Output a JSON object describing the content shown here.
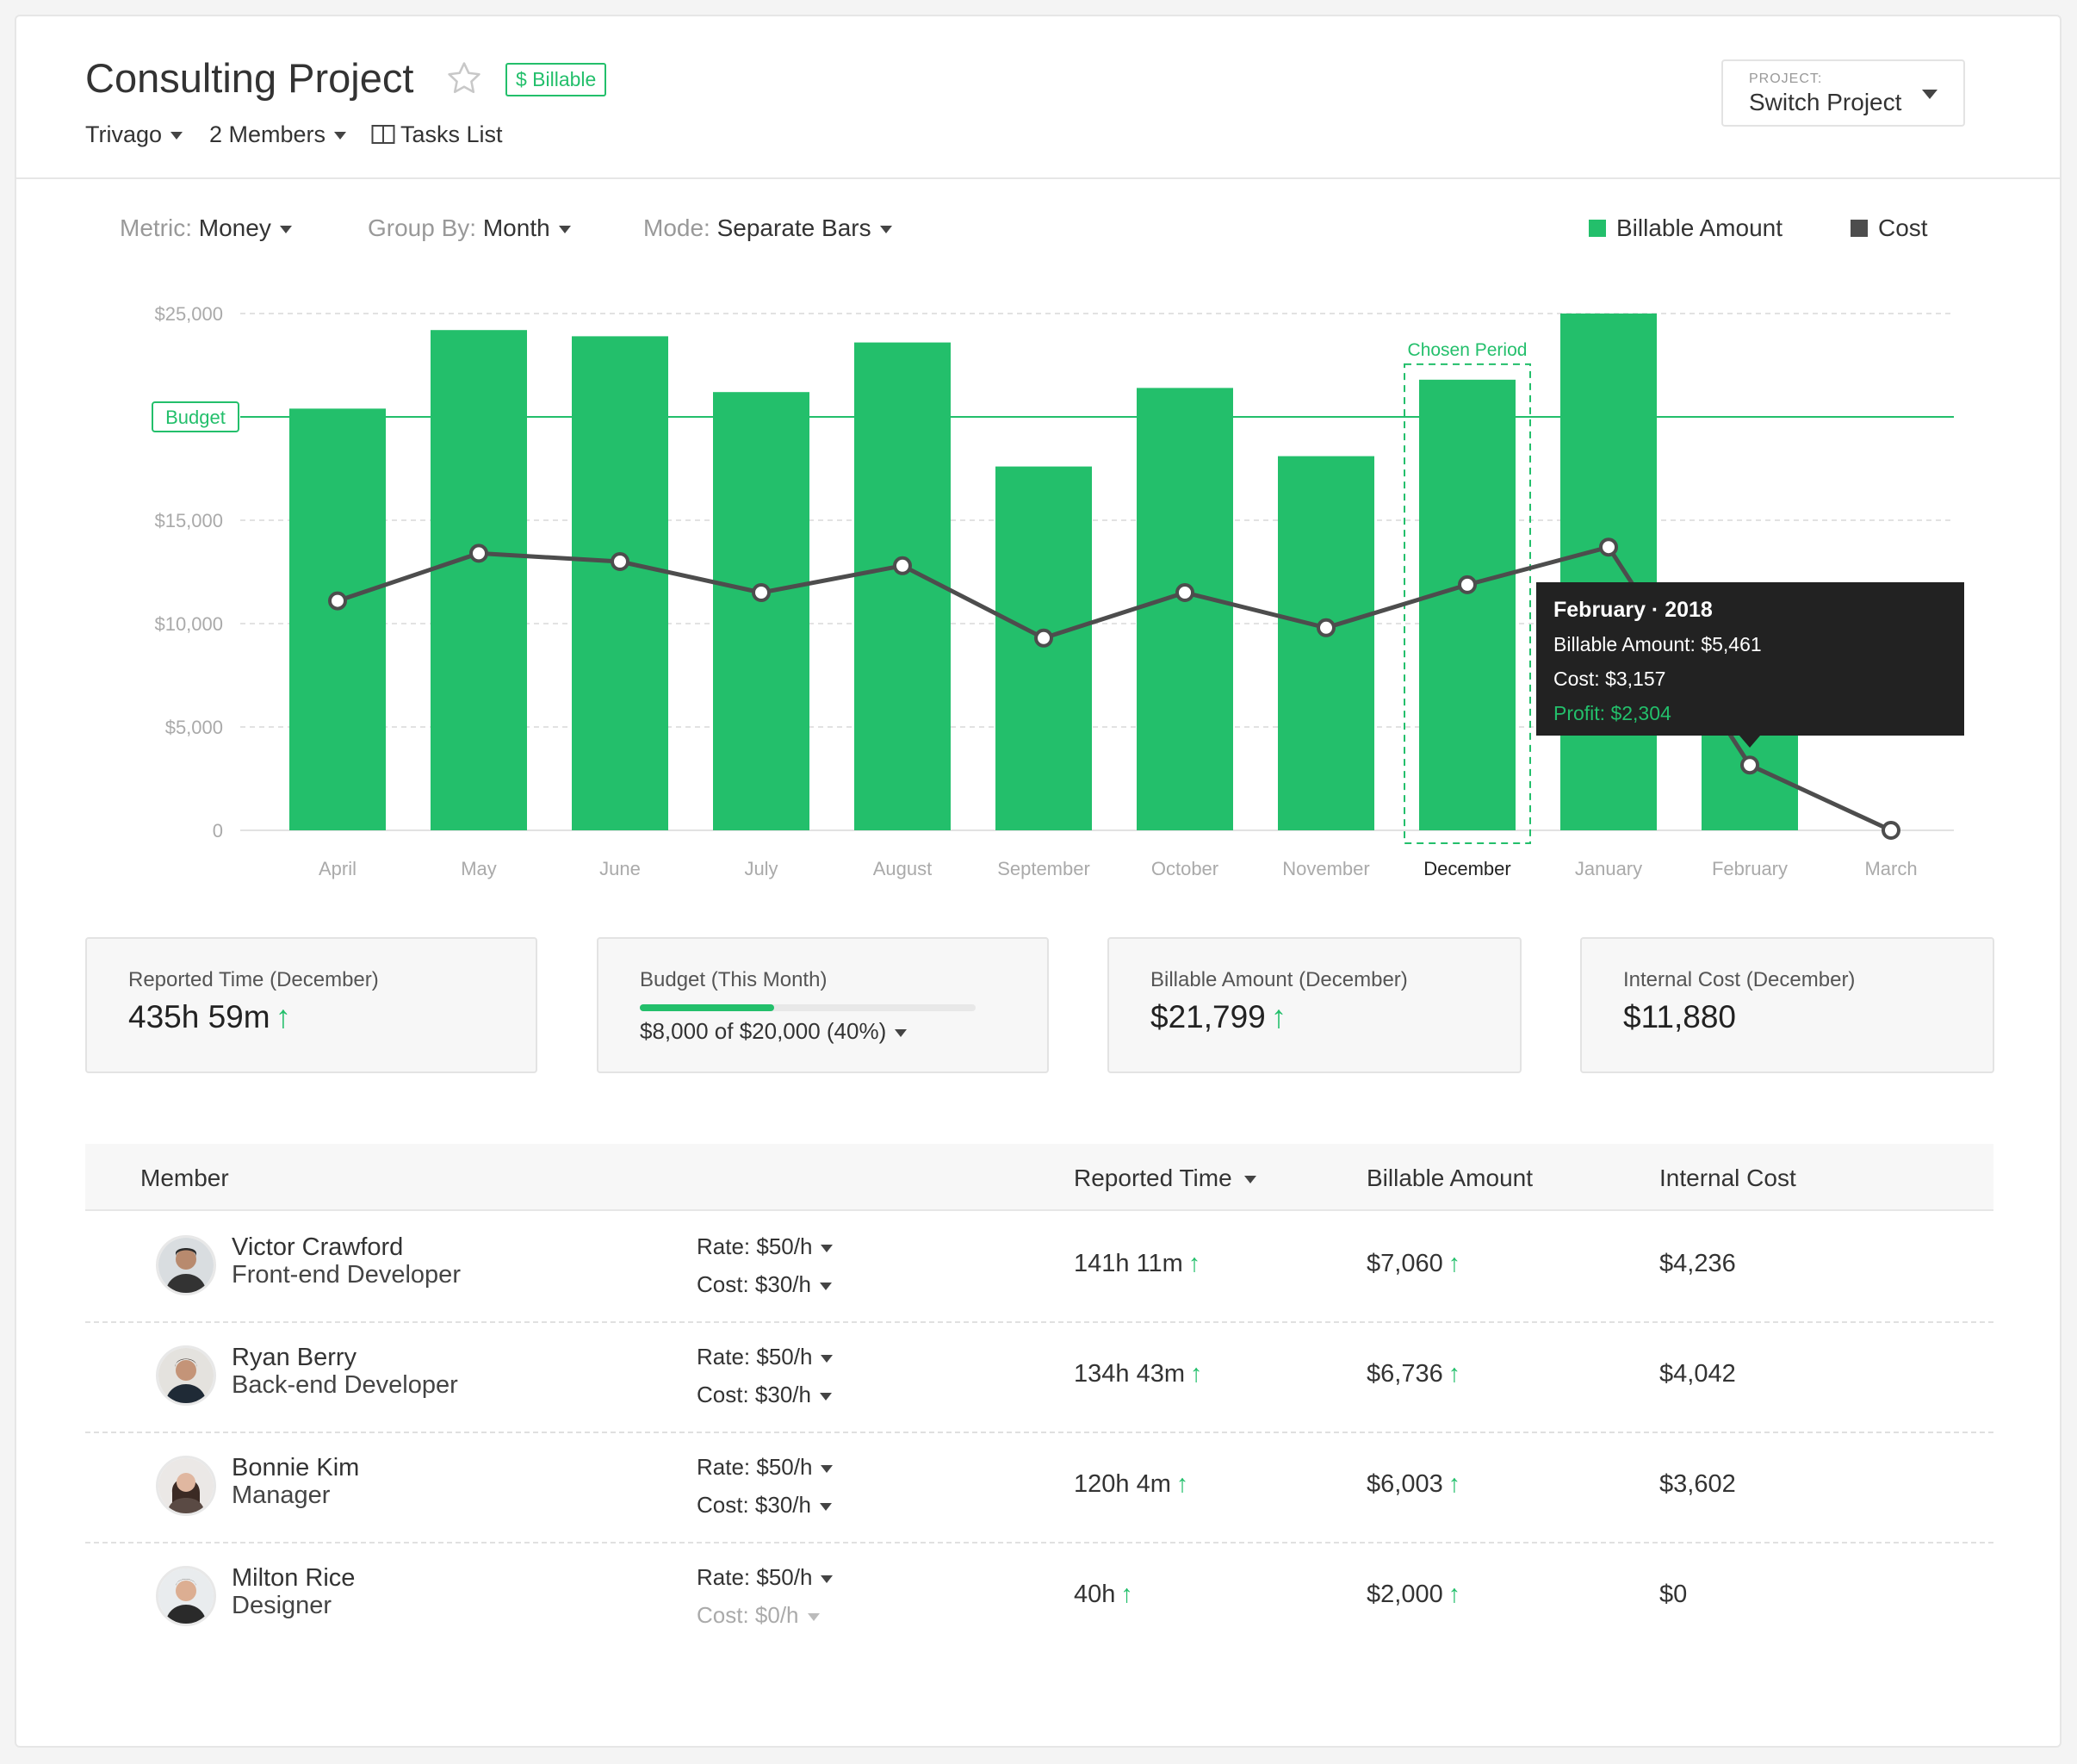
{
  "header": {
    "title": "Consulting Project",
    "billable_badge": "$ Billable",
    "client": "Trivago",
    "members": "2 Members",
    "tasks_list": "Tasks List",
    "project_switch_label": "PROJECT:",
    "project_switch_value": "Switch Project"
  },
  "controls": {
    "metric_label": "Metric:",
    "metric_value": "Money",
    "group_label": "Group By:",
    "group_value": "Month",
    "mode_label": "Mode:",
    "mode_value": "Separate Bars"
  },
  "legend": {
    "billable": "Billable Amount",
    "cost": "Cost"
  },
  "colors": {
    "accent": "#23bf6b",
    "cost_line": "#4d4d4d",
    "tooltip_bg": "#222222"
  },
  "chart_data": {
    "type": "bar",
    "categories": [
      "April",
      "May",
      "June",
      "July",
      "August",
      "September",
      "October",
      "November",
      "December",
      "January",
      "February",
      "March"
    ],
    "series": [
      {
        "name": "Billable Amount",
        "type": "bar",
        "values": [
          20400,
          24200,
          23900,
          21200,
          23600,
          17600,
          21400,
          18100,
          21799,
          25000,
          5461,
          0
        ]
      },
      {
        "name": "Cost",
        "type": "line",
        "values": [
          11100,
          13400,
          13000,
          11500,
          12800,
          9300,
          11500,
          9800,
          11880,
          13700,
          3157,
          0
        ]
      }
    ],
    "yticks": [
      "$25,000",
      "$15,000",
      "$10,000",
      "$5,000",
      "0"
    ],
    "ytick_values": [
      25000,
      15000,
      10000,
      5000,
      0
    ],
    "ylim": [
      0,
      25000
    ],
    "budget": {
      "label": "Budget",
      "value": 20000
    },
    "chosen_period": {
      "label": "Chosen Period",
      "category": "December"
    },
    "tooltip": {
      "category": "February",
      "title": "February · 2018",
      "billable": "Billable Amount: $5,461",
      "cost": "Cost: $3,157",
      "profit": "Profit: $2,304"
    },
    "grid": true,
    "legend_position": "top-right"
  },
  "stats": {
    "reported_time_label": "Reported Time (December)",
    "reported_time_value": "435h 59m",
    "budget_label": "Budget (This Month)",
    "budget_used": "$8,000",
    "budget_of": "of",
    "budget_total": "$20,000 (40%)",
    "budget_fraction": 0.4,
    "billable_label": "Billable Amount (December)",
    "billable_value": "$21,799",
    "internal_cost_label": "Internal Cost (December)",
    "internal_cost_value": "$11,880"
  },
  "table": {
    "headers": {
      "member": "Member",
      "reported_time": "Reported Time",
      "billable_amount": "Billable Amount",
      "internal_cost": "Internal Cost"
    },
    "rows": [
      {
        "name": "Victor Crawford",
        "role": "Front-end Developer",
        "rate": "Rate: $50/h",
        "cost": "Cost: $30/h",
        "time": "141h 11m",
        "billable": "$7,060",
        "internal": "$4,236"
      },
      {
        "name": "Ryan Berry",
        "role": "Back-end Developer",
        "rate": "Rate: $50/h",
        "cost": "Cost: $30/h",
        "time": "134h 43m",
        "billable": "$6,736",
        "internal": "$4,042"
      },
      {
        "name": "Bonnie Kim",
        "role": "Manager",
        "rate": "Rate: $50/h",
        "cost": "Cost: $30/h",
        "time": "120h 4m",
        "billable": "$6,003",
        "internal": "$3,602"
      },
      {
        "name": "Milton Rice",
        "role": "Designer",
        "rate": "Rate: $50/h",
        "cost": "Cost: $0/h",
        "time": "40h",
        "billable": "$2,000",
        "internal": "$0"
      }
    ]
  }
}
